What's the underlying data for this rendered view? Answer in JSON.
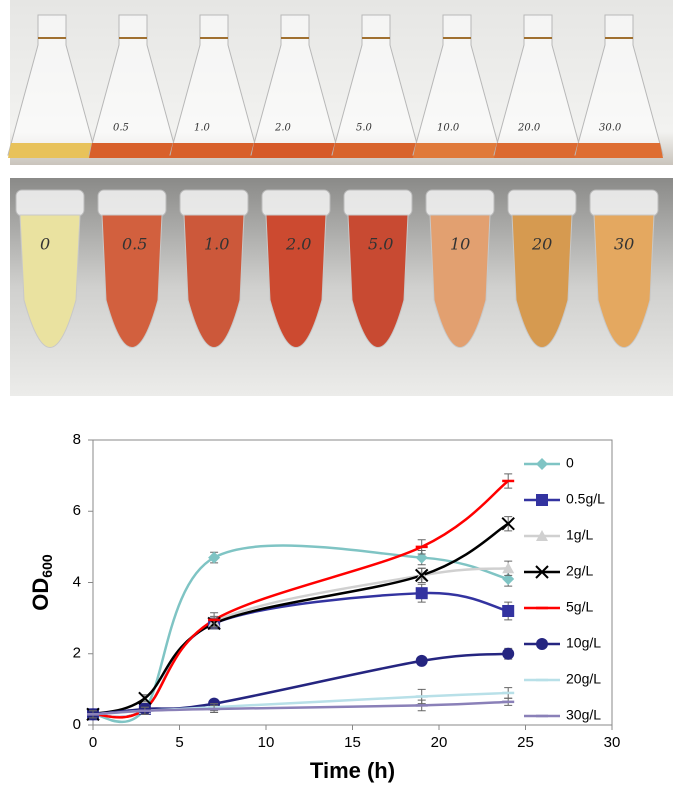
{
  "photos": {
    "flask_labels": [
      "0.5",
      "1.0",
      "2.0",
      "5.0",
      "10.0",
      "20.0",
      "30.0"
    ],
    "tube_labels": [
      "0",
      "0.5",
      "1.0",
      "2.0",
      "5.0",
      "10",
      "20",
      "30"
    ]
  },
  "chart_data": {
    "type": "line",
    "xlabel": "Time (h)",
    "ylabel": "OD",
    "ylabel_subscript": "600",
    "x": [
      0,
      3,
      7,
      19,
      24
    ],
    "xlim": [
      0,
      30
    ],
    "xticks": [
      0,
      5,
      10,
      15,
      20,
      25,
      30
    ],
    "ylim": [
      0,
      8
    ],
    "yticks": [
      0,
      2,
      4,
      6,
      8
    ],
    "smooth": true,
    "legend": "upper right",
    "series": [
      {
        "name": "0",
        "color": "#7fc4c4",
        "marker": "diamond",
        "values": [
          0.3,
          0.45,
          4.7,
          4.7,
          4.1
        ],
        "errors": [
          0.1,
          0.1,
          0.15,
          0.2,
          0.2
        ]
      },
      {
        "name": "0.5g/L",
        "color": "#3333a0",
        "marker": "square",
        "values": [
          0.3,
          0.45,
          2.85,
          3.7,
          3.2
        ],
        "errors": [
          0.1,
          0.1,
          0.15,
          0.25,
          0.25
        ]
      },
      {
        "name": "1g/L",
        "color": "#d0d0d0",
        "marker": "triangle",
        "values": [
          0.3,
          0.45,
          2.9,
          4.2,
          4.4
        ],
        "errors": [
          0.1,
          0.1,
          0.15,
          0.2,
          0.2
        ]
      },
      {
        "name": "2g/L",
        "color": "#000000",
        "marker": "x",
        "values": [
          0.3,
          0.75,
          2.85,
          4.2,
          5.65
        ],
        "errors": [
          0.1,
          0.1,
          0.15,
          0.2,
          0.2
        ]
      },
      {
        "name": "5g/L",
        "color": "#ff0000",
        "marker": "dash",
        "values": [
          0.3,
          0.45,
          2.95,
          5.0,
          6.85
        ],
        "errors": [
          0.1,
          0.1,
          0.2,
          0.2,
          0.2
        ]
      },
      {
        "name": "10g/L",
        "color": "#252580",
        "marker": "circle",
        "values": [
          0.3,
          0.45,
          0.6,
          1.8,
          2.0
        ],
        "errors": [
          0.1,
          0.1,
          0.1,
          0.1,
          0.15
        ]
      },
      {
        "name": "20g/L",
        "color": "#b8e0e8",
        "marker": "dash",
        "values": [
          0.3,
          0.4,
          0.5,
          0.8,
          0.9
        ],
        "errors": [
          0.1,
          0.1,
          0.1,
          0.2,
          0.15
        ]
      },
      {
        "name": "30g/L",
        "color": "#8a80b8",
        "marker": "dash",
        "values": [
          0.3,
          0.4,
          0.45,
          0.55,
          0.65
        ],
        "errors": [
          0.1,
          0.1,
          0.1,
          0.15,
          0.1
        ]
      }
    ]
  }
}
